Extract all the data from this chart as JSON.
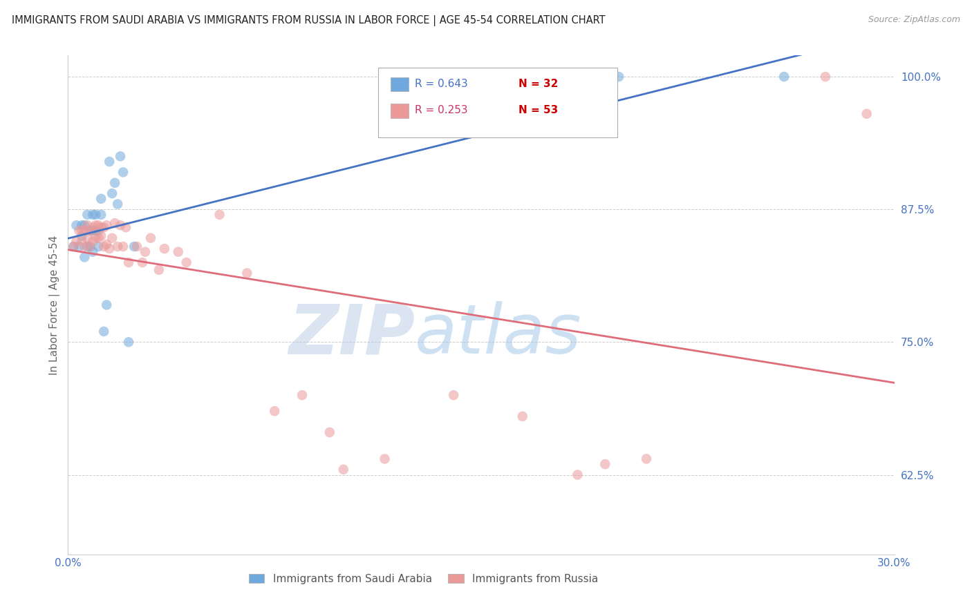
{
  "title": "IMMIGRANTS FROM SAUDI ARABIA VS IMMIGRANTS FROM RUSSIA IN LABOR FORCE | AGE 45-54 CORRELATION CHART",
  "source": "Source: ZipAtlas.com",
  "ylabel": "In Labor Force | Age 45-54",
  "xlim": [
    0.0,
    0.3
  ],
  "ylim": [
    0.55,
    1.02
  ],
  "xticks": [
    0.0,
    0.03,
    0.06,
    0.09,
    0.12,
    0.15,
    0.18,
    0.21,
    0.24,
    0.27,
    0.3
  ],
  "xticklabels": [
    "0.0%",
    "",
    "",
    "",
    "",
    "",
    "",
    "",
    "",
    "",
    "30.0%"
  ],
  "yticks": [
    0.625,
    0.75,
    0.875,
    1.0
  ],
  "yticklabels": [
    "62.5%",
    "75.0%",
    "87.5%",
    "100.0%"
  ],
  "ytick_color": "#4472c4",
  "legend_color_saudi": "#6fa8dc",
  "legend_color_russia": "#ea9999",
  "watermark_zip": "ZIP",
  "watermark_atlas": "atlas",
  "watermark_color_zip": "#b8cce4",
  "watermark_color_atlas": "#9fc5e8",
  "saudi_color": "#6fa8dc",
  "russia_color": "#ea9999",
  "saudi_line_color": "#4472c4",
  "russia_line_color": "#e06c7a",
  "dot_size": 110,
  "dot_alpha": 0.55,
  "saudi_x": [
    0.002,
    0.003,
    0.004,
    0.005,
    0.005,
    0.006,
    0.006,
    0.007,
    0.007,
    0.008,
    0.008,
    0.009,
    0.009,
    0.009,
    0.01,
    0.01,
    0.011,
    0.011,
    0.012,
    0.012,
    0.013,
    0.014,
    0.015,
    0.016,
    0.017,
    0.018,
    0.019,
    0.02,
    0.022,
    0.024,
    0.2,
    0.26
  ],
  "saudi_y": [
    0.84,
    0.86,
    0.84,
    0.85,
    0.86,
    0.83,
    0.86,
    0.84,
    0.87,
    0.84,
    0.855,
    0.835,
    0.855,
    0.87,
    0.855,
    0.87,
    0.84,
    0.855,
    0.87,
    0.885,
    0.76,
    0.785,
    0.92,
    0.89,
    0.9,
    0.88,
    0.925,
    0.91,
    0.75,
    0.84,
    1.0,
    1.0
  ],
  "russia_x": [
    0.002,
    0.003,
    0.004,
    0.005,
    0.005,
    0.006,
    0.006,
    0.007,
    0.007,
    0.008,
    0.008,
    0.009,
    0.009,
    0.01,
    0.01,
    0.011,
    0.011,
    0.012,
    0.012,
    0.013,
    0.013,
    0.014,
    0.014,
    0.015,
    0.016,
    0.017,
    0.018,
    0.019,
    0.02,
    0.021,
    0.022,
    0.025,
    0.027,
    0.028,
    0.03,
    0.033,
    0.035,
    0.04,
    0.043,
    0.055,
    0.065,
    0.075,
    0.085,
    0.095,
    0.1,
    0.115,
    0.14,
    0.165,
    0.185,
    0.195,
    0.21,
    0.275,
    0.29
  ],
  "russia_y": [
    0.84,
    0.845,
    0.855,
    0.845,
    0.855,
    0.84,
    0.855,
    0.848,
    0.86,
    0.84,
    0.855,
    0.845,
    0.858,
    0.848,
    0.86,
    0.848,
    0.86,
    0.85,
    0.858,
    0.84,
    0.858,
    0.842,
    0.86,
    0.838,
    0.848,
    0.862,
    0.84,
    0.86,
    0.84,
    0.858,
    0.825,
    0.84,
    0.825,
    0.835,
    0.848,
    0.818,
    0.838,
    0.835,
    0.825,
    0.87,
    0.815,
    0.685,
    0.7,
    0.665,
    0.63,
    0.64,
    0.7,
    0.68,
    0.625,
    0.635,
    0.64,
    1.0,
    0.965
  ],
  "legend_r_saudi_text": "R = 0.643",
  "legend_n_saudi_text": "N = 32",
  "legend_r_russia_text": "R = 0.253",
  "legend_n_russia_text": "N = 53",
  "legend_r_color_saudi": "#4472c4",
  "legend_n_color_saudi": "#cc0000",
  "legend_r_color_russia": "#cc3366",
  "legend_n_color_russia": "#cc0000"
}
